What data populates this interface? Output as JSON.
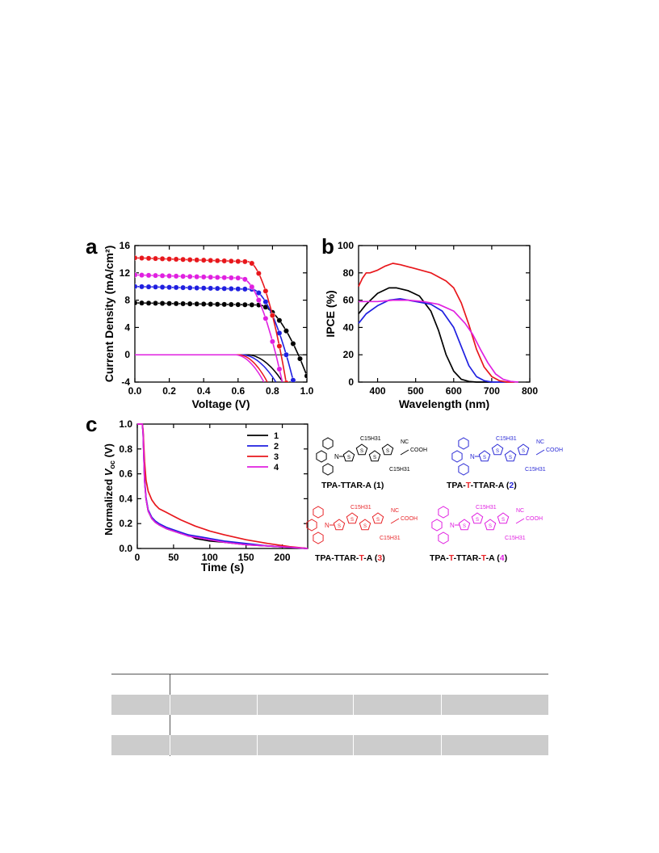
{
  "figure": {
    "panels": [
      {
        "letter": "a"
      },
      {
        "letter": "b"
      },
      {
        "letter": "c"
      }
    ],
    "structures": [
      {
        "label_parts": [
          "TPA-TTAR-A (",
          "1",
          ")"
        ],
        "colors": [
          "#000000",
          "#000000",
          "#000000"
        ],
        "accent": "#000000",
        "substituents": [
          "C15H31",
          "C15H31",
          "NC",
          "COOH"
        ]
      },
      {
        "label_parts": [
          "TPA-",
          "T",
          "-TTAR-A (",
          "2",
          ")"
        ],
        "colors": [
          "#000000",
          "#e8262a",
          "#000000",
          "#2b2bd6",
          "#000000"
        ],
        "accent": "#2b2bd6",
        "substituents": [
          "C15H31",
          "C15H31",
          "NC",
          "COOH"
        ]
      },
      {
        "label_parts": [
          "TPA-TTAR-",
          "T",
          "-A (",
          "3",
          ")"
        ],
        "colors": [
          "#000000",
          "#e8262a",
          "#000000",
          "#e8262a",
          "#000000"
        ],
        "accent": "#e8262a",
        "substituents": [
          "C15H31",
          "C15H31",
          "NC",
          "COOH"
        ]
      },
      {
        "label_parts": [
          "TPA-",
          "T",
          "-TTAR-",
          "T",
          "-A (",
          "4",
          ")"
        ],
        "colors": [
          "#000000",
          "#e8262a",
          "#000000",
          "#e8262a",
          "#000000",
          "#e020e0",
          "#000000"
        ],
        "accent": "#e020e0",
        "substituents": [
          "C15H31",
          "C15H31",
          "NC",
          "COOH"
        ]
      }
    ]
  },
  "chart_data": [
    {
      "type": "line",
      "panel": "a",
      "xlabel": "Voltage (V)",
      "ylabel": "Current Density (mA/cm²)",
      "xlim": [
        0.0,
        1.0
      ],
      "ylim": [
        -4,
        16
      ],
      "xticks": [
        "0.0",
        "0.2",
        "0.4",
        "0.6",
        "0.8",
        "1.0"
      ],
      "yticks": [
        "-4",
        "0",
        "4",
        "8",
        "12",
        "16"
      ],
      "series": [
        {
          "id": "1",
          "color": "#000000",
          "jsc": 7.6,
          "voc": 0.95,
          "knee": 0.72,
          "dark_onset": 0.65,
          "dark_end": [
            0.86,
            -4
          ]
        },
        {
          "id": "2",
          "color": "#1f1fe0",
          "jsc": 10.0,
          "voc": 0.88,
          "knee": 0.68,
          "dark_onset": 0.62,
          "dark_end": [
            0.82,
            -4
          ]
        },
        {
          "id": "3",
          "color": "#e8171c",
          "jsc": 14.2,
          "voc": 0.85,
          "knee": 0.66,
          "dark_onset": 0.6,
          "dark_end": [
            0.77,
            -4
          ]
        },
        {
          "id": "4",
          "color": "#e020e0",
          "jsc": 11.7,
          "voc": 0.82,
          "knee": 0.62,
          "dark_onset": 0.58,
          "dark_end": [
            0.75,
            -4
          ]
        }
      ]
    },
    {
      "type": "line",
      "panel": "b",
      "xlabel": "Wavelength (nm)",
      "ylabel": "IPCE (%)",
      "xlim": [
        350,
        800
      ],
      "ylim": [
        0,
        100
      ],
      "xticks": [
        "400",
        "500",
        "600",
        "700",
        "800"
      ],
      "yticks": [
        "0",
        "20",
        "40",
        "60",
        "80",
        "100"
      ],
      "series": [
        {
          "id": "1",
          "color": "#000000",
          "x": [
            350,
            370,
            400,
            430,
            450,
            480,
            510,
            540,
            560,
            580,
            600,
            620,
            640,
            660,
            680,
            700
          ],
          "y": [
            50,
            57,
            65,
            69,
            69,
            67,
            63,
            52,
            38,
            20,
            8,
            2,
            0.5,
            0,
            0,
            0
          ]
        },
        {
          "id": "2",
          "color": "#1f1fe0",
          "x": [
            350,
            370,
            400,
            430,
            460,
            500,
            540,
            570,
            600,
            620,
            640,
            660,
            680,
            700,
            720,
            740
          ],
          "y": [
            43,
            50,
            56,
            60,
            61,
            59,
            57,
            52,
            40,
            26,
            12,
            4,
            1,
            0,
            0,
            0
          ]
        },
        {
          "id": "3",
          "color": "#e8171c",
          "x": [
            350,
            360,
            370,
            380,
            400,
            420,
            440,
            460,
            500,
            540,
            580,
            600,
            620,
            640,
            660,
            680,
            700,
            720,
            740,
            760
          ],
          "y": [
            70,
            76,
            80,
            80,
            82,
            85,
            87,
            86,
            83,
            80,
            74,
            69,
            58,
            42,
            24,
            11,
            4,
            1,
            0,
            0
          ]
        },
        {
          "id": "4",
          "color": "#e020e0",
          "x": [
            350,
            380,
            400,
            440,
            480,
            520,
            560,
            600,
            630,
            650,
            670,
            690,
            710,
            730,
            750,
            770
          ],
          "y": [
            59,
            59,
            59,
            60,
            60,
            59,
            57,
            52,
            43,
            35,
            24,
            14,
            6,
            2,
            0.5,
            0
          ]
        }
      ]
    },
    {
      "type": "line",
      "panel": "c",
      "xlabel": "Time (s)",
      "ylabel_parts": [
        "Normalized ",
        "V",
        "oc",
        " (V)"
      ],
      "xlim": [
        0,
        235
      ],
      "ylim": [
        0,
        1.0
      ],
      "xticks": [
        "0",
        "50",
        "100",
        "150",
        "200"
      ],
      "yticks": [
        "0.0",
        "0.2",
        "0.4",
        "0.6",
        "0.8",
        "1.0"
      ],
      "legend": [
        "1",
        "2",
        "3",
        "4"
      ],
      "series": [
        {
          "id": "1",
          "color": "#000000",
          "x": [
            0,
            7,
            8,
            10,
            12,
            15,
            20,
            25,
            30,
            40,
            50,
            60,
            70,
            80,
            90,
            100,
            120,
            150,
            180,
            210,
            235
          ],
          "y": [
            1.0,
            1.0,
            0.92,
            0.55,
            0.4,
            0.3,
            0.24,
            0.21,
            0.19,
            0.16,
            0.14,
            0.12,
            0.11,
            0.08,
            0.07,
            0.06,
            0.05,
            0.03,
            0.02,
            0.01,
            0.0
          ]
        },
        {
          "id": "2",
          "color": "#1f1fe0",
          "x": [
            0,
            7,
            8,
            10,
            12,
            15,
            20,
            25,
            30,
            40,
            50,
            60,
            70,
            80,
            90,
            100,
            120,
            150,
            180,
            210,
            235
          ],
          "y": [
            1.0,
            1.0,
            0.93,
            0.56,
            0.41,
            0.31,
            0.25,
            0.22,
            0.2,
            0.17,
            0.15,
            0.13,
            0.11,
            0.1,
            0.09,
            0.08,
            0.06,
            0.04,
            0.02,
            0.01,
            0.0
          ]
        },
        {
          "id": "3",
          "color": "#e8171c",
          "x": [
            0,
            7,
            8,
            10,
            12,
            15,
            20,
            25,
            30,
            40,
            50,
            60,
            80,
            100,
            120,
            150,
            180,
            210,
            235
          ],
          "y": [
            1.0,
            1.0,
            0.95,
            0.7,
            0.55,
            0.46,
            0.39,
            0.35,
            0.32,
            0.29,
            0.26,
            0.23,
            0.18,
            0.14,
            0.11,
            0.07,
            0.04,
            0.015,
            0.0
          ]
        },
        {
          "id": "4",
          "color": "#e020e0",
          "x": [
            0,
            7,
            8,
            10,
            12,
            15,
            20,
            25,
            30,
            40,
            50,
            60,
            70,
            80,
            90,
            100,
            120,
            150,
            180,
            210,
            235
          ],
          "y": [
            1.0,
            1.0,
            0.92,
            0.54,
            0.4,
            0.3,
            0.24,
            0.21,
            0.19,
            0.16,
            0.14,
            0.12,
            0.1,
            0.09,
            0.08,
            0.07,
            0.05,
            0.03,
            0.02,
            0.01,
            0.0
          ]
        }
      ]
    }
  ],
  "table": {
    "rows": [
      {
        "cells": [
          "",
          "",
          "",
          "",
          ""
        ],
        "shaded": false
      },
      {
        "cells": [
          "",
          "",
          "",
          "",
          ""
        ],
        "shaded": true
      },
      {
        "cells": [
          "",
          "",
          "",
          "",
          ""
        ],
        "shaded": false
      },
      {
        "cells": [
          "",
          "",
          "",
          "",
          ""
        ],
        "shaded": true
      }
    ]
  }
}
